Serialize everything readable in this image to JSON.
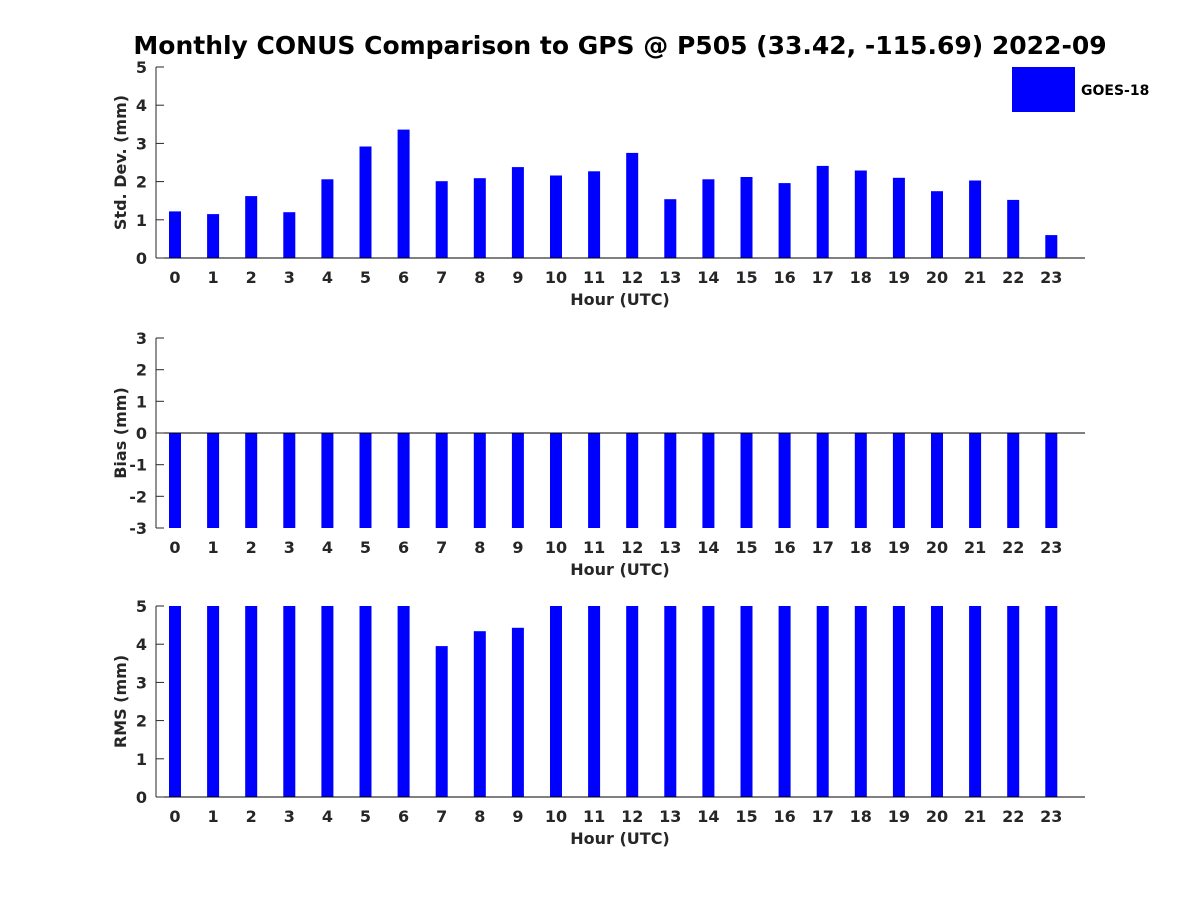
{
  "title": "Monthly CONUS Comparison to GPS @ P505 (33.42, -115.69) 2022-09",
  "legend": {
    "label": "GOES-18",
    "placement": "top-right"
  },
  "colors": {
    "bar": "#0000ff",
    "axis": "#262626"
  },
  "chart_data": [
    {
      "type": "bar",
      "categories": [
        "0",
        "1",
        "2",
        "3",
        "4",
        "5",
        "6",
        "7",
        "8",
        "9",
        "10",
        "11",
        "12",
        "13",
        "14",
        "15",
        "16",
        "17",
        "18",
        "19",
        "20",
        "21",
        "22",
        "23"
      ],
      "series": [
        {
          "name": "GOES-18",
          "values": [
            1.22,
            1.15,
            1.62,
            1.2,
            2.06,
            2.92,
            3.36,
            2.01,
            2.09,
            2.38,
            2.16,
            2.27,
            2.75,
            1.54,
            2.06,
            2.12,
            1.96,
            2.41,
            2.29,
            2.1,
            1.75,
            2.03,
            1.52,
            0.6
          ]
        }
      ],
      "xlabel": "Hour (UTC)",
      "ylabel": "Std. Dev. (mm)",
      "ylim": [
        0,
        5
      ],
      "yticks": [
        0,
        1,
        2,
        3,
        4,
        5
      ],
      "grid": false
    },
    {
      "type": "bar",
      "categories": [
        "0",
        "1",
        "2",
        "3",
        "4",
        "5",
        "6",
        "7",
        "8",
        "9",
        "10",
        "11",
        "12",
        "13",
        "14",
        "15",
        "16",
        "17",
        "18",
        "19",
        "20",
        "21",
        "22",
        "23"
      ],
      "series": [
        {
          "name": "GOES-18",
          "values": [
            -3,
            -3,
            -3,
            -3,
            -3,
            -3,
            -3,
            -3,
            -3,
            -3,
            -3,
            -3,
            -3,
            -3,
            -3,
            -3,
            -3,
            -3,
            -3,
            -3,
            -3,
            -3,
            -3,
            -3
          ]
        }
      ],
      "xlabel": "Hour (UTC)",
      "ylabel": "Bias (mm)",
      "ylim": [
        -3,
        3
      ],
      "yticks": [
        -3,
        -2,
        -1,
        0,
        1,
        2,
        3
      ],
      "grid": false
    },
    {
      "type": "bar",
      "categories": [
        "0",
        "1",
        "2",
        "3",
        "4",
        "5",
        "6",
        "7",
        "8",
        "9",
        "10",
        "11",
        "12",
        "13",
        "14",
        "15",
        "16",
        "17",
        "18",
        "19",
        "20",
        "21",
        "22",
        "23"
      ],
      "series": [
        {
          "name": "GOES-18",
          "values": [
            5,
            5,
            5,
            5,
            5,
            5,
            5,
            3.95,
            4.34,
            4.43,
            5,
            5,
            5,
            5,
            5,
            5,
            5,
            5,
            5,
            5,
            5,
            5,
            5,
            5
          ]
        }
      ],
      "xlabel": "Hour (UTC)",
      "ylabel": "RMS (mm)",
      "ylim": [
        0,
        5
      ],
      "yticks": [
        0,
        1,
        2,
        3,
        4,
        5
      ],
      "grid": false
    }
  ]
}
